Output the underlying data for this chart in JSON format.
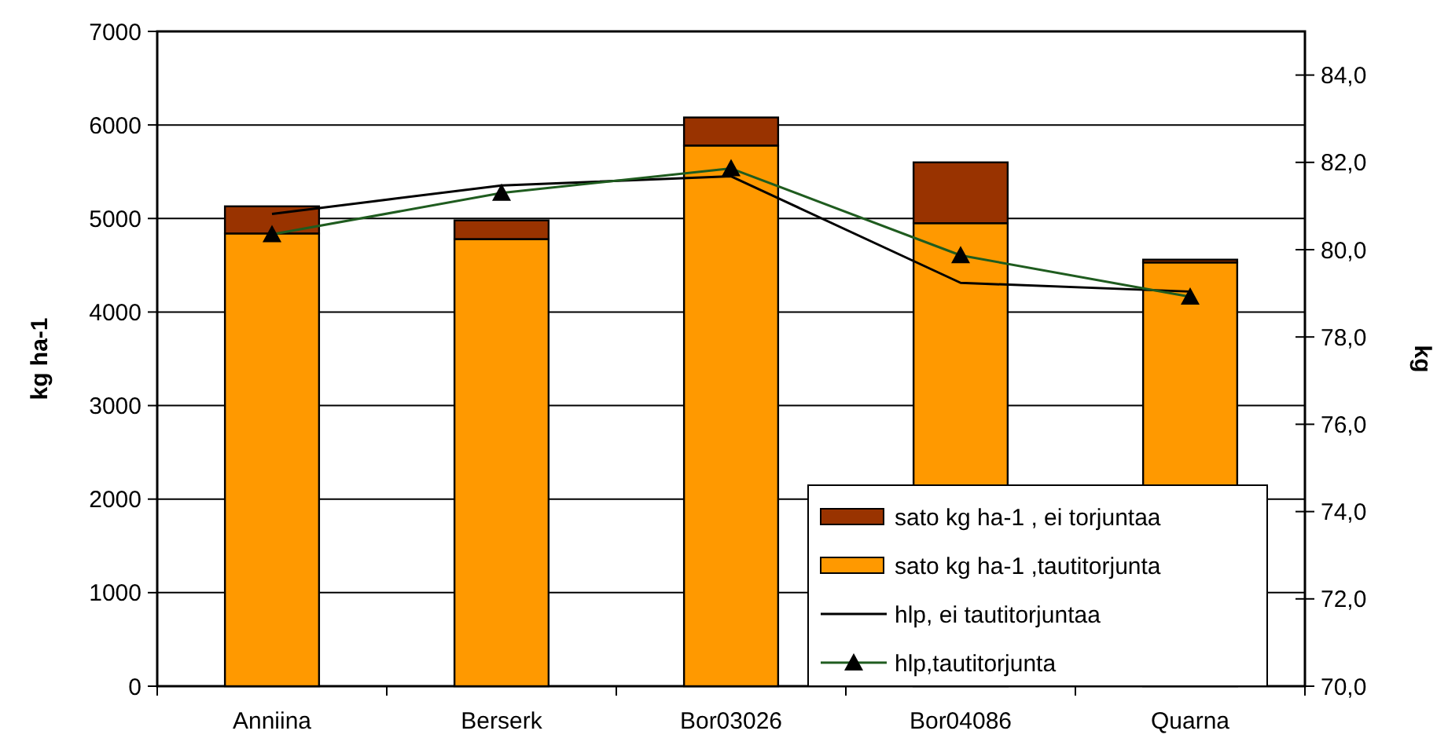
{
  "chart_data": {
    "type": "bar",
    "stacked": true,
    "ylabel": "kg ha-1",
    "y2label": "kg",
    "categories": [
      "Anniina",
      "Berserk",
      "Bor03026",
      "Bor04086",
      "Quarna"
    ],
    "series": [
      {
        "name": "sato kg ha-1 ,tautitorjunta",
        "color": "#ff9900",
        "values": [
          4840,
          4780,
          5780,
          4950,
          4530
        ]
      },
      {
        "name": "sato kg ha-1 , ei torjuntaa",
        "color": "#993300",
        "values": [
          290,
          200,
          300,
          650,
          30
        ]
      },
      {
        "name": "hlp, ei tautitorjuntaa",
        "type": "line",
        "axis": "y2",
        "color": "#000000",
        "marker": "none",
        "values": [
          80.82,
          81.47,
          81.68,
          79.24,
          79.04
        ]
      },
      {
        "name": "hlp,tautitorjunta",
        "type": "line",
        "axis": "y2",
        "color": "#1f5c1f",
        "marker": "triangle",
        "values": [
          80.35,
          81.3,
          81.86,
          79.87,
          78.92
        ]
      }
    ],
    "ylim": [
      0,
      7000
    ],
    "yticks": [
      0,
      1000,
      2000,
      3000,
      4000,
      5000,
      6000,
      7000
    ],
    "y2lim": [
      70,
      85
    ],
    "y2ticks": [
      {
        "value": 70,
        "label": "70,0"
      },
      {
        "value": 72,
        "label": "72,0"
      },
      {
        "value": 74,
        "label": "74,0"
      },
      {
        "value": 76,
        "label": "76,0"
      },
      {
        "value": 78,
        "label": "78,0"
      },
      {
        "value": 80,
        "label": "80,0"
      },
      {
        "value": 82,
        "label": "82,0"
      },
      {
        "value": 84,
        "label": "84,0"
      }
    ],
    "grid": "y",
    "legend": "bottom right"
  }
}
